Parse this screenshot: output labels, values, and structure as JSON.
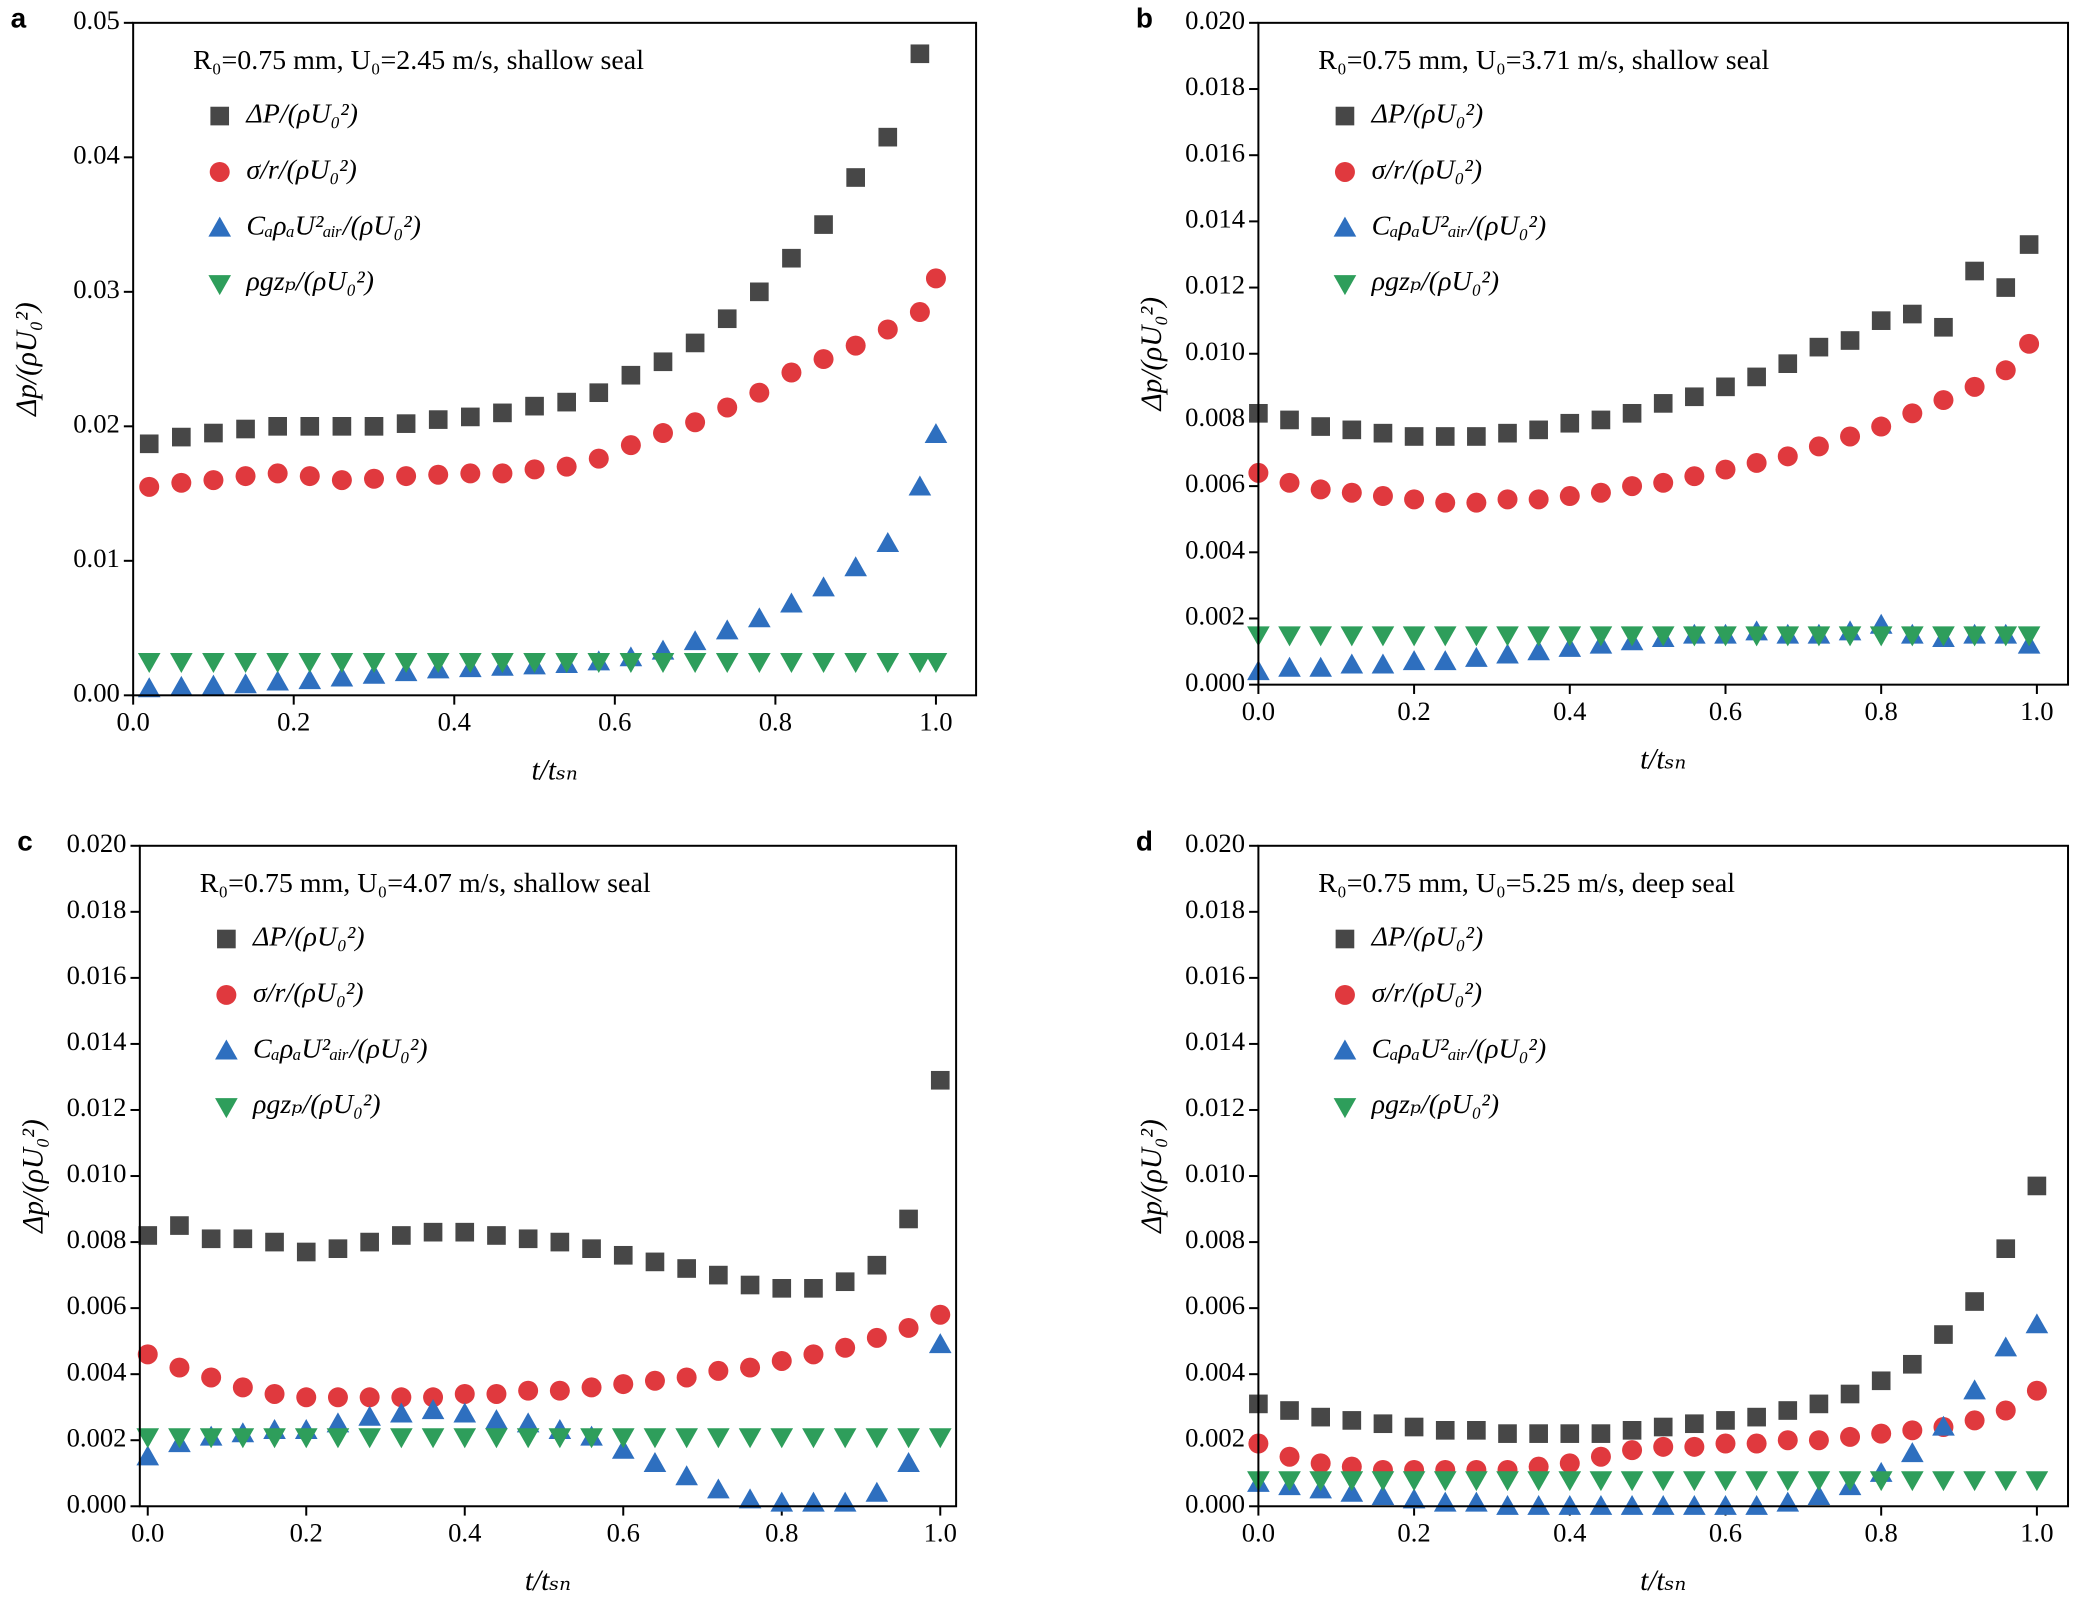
{
  "chart_data": [
    {
      "type": "scatter",
      "label": "a",
      "annotation": "R₀=0.75 mm, U₀=2.45 m/s, shallow seal",
      "xlabel": "t/tₛₙ",
      "ylabel": "Δp/(ρU₀²)",
      "xlim": [
        0,
        1.05
      ],
      "ylim": [
        0,
        0.05
      ],
      "xticks": [
        {
          "value": 0,
          "label": "0.0"
        },
        0.2,
        0.4,
        0.6,
        0.8,
        {
          "value": 1,
          "label": "1.0"
        }
      ],
      "yticks": [
        {
          "value": 0,
          "label": "0.00"
        },
        0.01,
        0.02,
        0.03,
        0.04,
        0.05
      ],
      "x": [
        0.02,
        0.06,
        0.1,
        0.14,
        0.18,
        0.22,
        0.26,
        0.3,
        0.34,
        0.38,
        0.42,
        0.46,
        0.5,
        0.54,
        0.58,
        0.62,
        0.66,
        0.7,
        0.74,
        0.78,
        0.82,
        0.86,
        0.9,
        0.94,
        0.98,
        1.0
      ],
      "series": [
        {
          "name": "ΔP/(ρU₀²)",
          "color": "#474747",
          "marker": "square",
          "values": [
            0.0187,
            0.0192,
            0.0195,
            0.0198,
            0.02,
            0.02,
            0.02,
            0.02,
            0.0202,
            0.0205,
            0.0207,
            0.021,
            0.0215,
            0.0218,
            0.0225,
            0.0238,
            0.0248,
            0.0262,
            0.028,
            0.03,
            0.0325,
            0.035,
            0.0385,
            0.0415,
            0.0477,
            null
          ]
        },
        {
          "name": "σ/r/(ρU₀²)",
          "color": "#e0393e",
          "marker": "circle",
          "values": [
            0.0155,
            0.0158,
            0.016,
            0.0163,
            0.0165,
            0.0163,
            0.016,
            0.0161,
            0.0163,
            0.0164,
            0.0165,
            0.0165,
            0.0168,
            0.017,
            0.0176,
            0.0186,
            0.0195,
            0.0203,
            0.0214,
            0.0225,
            0.024,
            0.025,
            0.026,
            0.0272,
            0.0285,
            0.031
          ]
        },
        {
          "name": "CₐρₐU²ₐᵢᵣ/(ρU₀²)",
          "color": "#2e6fbf",
          "marker": "triangle-up",
          "values": [
            0.0005,
            0.0006,
            0.0007,
            0.0008,
            0.001,
            0.0011,
            0.0013,
            0.0015,
            0.0017,
            0.0019,
            0.002,
            0.0021,
            0.0022,
            0.0023,
            0.0025,
            0.0028,
            0.0033,
            0.004,
            0.0048,
            0.0057,
            0.0068,
            0.008,
            0.0095,
            0.0113,
            0.0155,
            0.0194
          ]
        },
        {
          "name": "ρgzₚ/(ρU₀²)",
          "color": "#2e9e5b",
          "marker": "triangle-down",
          "values": [
            0.0025,
            0.0025,
            0.0025,
            0.0025,
            0.0025,
            0.0025,
            0.0025,
            0.0025,
            0.0025,
            0.0025,
            0.0025,
            0.0025,
            0.0025,
            0.0025,
            0.0025,
            0.0025,
            0.0025,
            0.0025,
            0.0025,
            0.0025,
            0.0025,
            0.0025,
            0.0025,
            0.0025,
            0.0025,
            0.0025
          ]
        }
      ]
    },
    {
      "type": "scatter",
      "label": "b",
      "annotation": "R₀=0.75 mm, U₀=3.71 m/s, shallow seal",
      "xlabel": "t/tₛₙ",
      "ylabel": "Δp/(ρU₀²)",
      "xlim": [
        0,
        1.04
      ],
      "ylim": [
        0,
        0.02
      ],
      "xticks": [
        {
          "value": 0,
          "label": "0.0"
        },
        0.2,
        0.4,
        0.6,
        0.8,
        {
          "value": 1,
          "label": "1.0"
        }
      ],
      "yticks": [
        {
          "value": 0,
          "label": "0.000"
        },
        0.002,
        0.004,
        0.006,
        0.008,
        {
          "value": 0.01,
          "label": "0.010"
        },
        0.012,
        0.014,
        0.016,
        0.018,
        {
          "value": 0.02,
          "label": "0.020"
        }
      ],
      "x": [
        0,
        0.04,
        0.08,
        0.12,
        0.16,
        0.2,
        0.24,
        0.28,
        0.32,
        0.36,
        0.4,
        0.44,
        0.48,
        0.52,
        0.56,
        0.6,
        0.64,
        0.68,
        0.72,
        0.76,
        0.8,
        0.84,
        0.88,
        0.92,
        0.96,
        0.99
      ],
      "series": [
        {
          "name": "ΔP/(ρU₀²)",
          "color": "#474747",
          "marker": "square",
          "values": [
            0.0082,
            0.008,
            0.0078,
            0.0077,
            0.0076,
            0.0075,
            0.0075,
            0.0075,
            0.0076,
            0.0077,
            0.0079,
            0.008,
            0.0082,
            0.0085,
            0.0087,
            0.009,
            0.0093,
            0.0097,
            0.0102,
            0.0104,
            0.011,
            0.0112,
            0.0108,
            0.0125,
            0.012,
            0.0133
          ]
        },
        {
          "name": "σ/r/(ρU₀²)",
          "color": "#e0393e",
          "marker": "circle",
          "values": [
            0.0064,
            0.0061,
            0.0059,
            0.0058,
            0.0057,
            0.0056,
            0.0055,
            0.0055,
            0.0056,
            0.0056,
            0.0057,
            0.0058,
            0.006,
            0.0061,
            0.0063,
            0.0065,
            0.0067,
            0.0069,
            0.0072,
            0.0075,
            0.0078,
            0.0082,
            0.0086,
            0.009,
            0.0095,
            0.0103
          ]
        },
        {
          "name": "CₐρₐU²ₐᵢᵣ/(ρU₀²)",
          "color": "#2e6fbf",
          "marker": "triangle-up",
          "values": [
            0.0004,
            0.0005,
            0.0005,
            0.0006,
            0.0006,
            0.0007,
            0.0007,
            0.0008,
            0.0009,
            0.001,
            0.0011,
            0.0012,
            0.0013,
            0.0014,
            0.0015,
            0.0015,
            0.0016,
            0.0015,
            0.0015,
            0.0016,
            0.0018,
            0.0015,
            0.0014,
            0.0015,
            0.0015,
            0.0012
          ]
        },
        {
          "name": "ρgzₚ/(ρU₀²)",
          "color": "#2e9e5b",
          "marker": "triangle-down",
          "values": [
            0.0015,
            0.0015,
            0.0015,
            0.0015,
            0.0015,
            0.0015,
            0.0015,
            0.0015,
            0.0015,
            0.0015,
            0.0015,
            0.0015,
            0.0015,
            0.0015,
            0.0015,
            0.0015,
            0.0015,
            0.0015,
            0.0015,
            0.0015,
            0.0015,
            0.0015,
            0.0015,
            0.0015,
            0.0015,
            0.0015
          ]
        }
      ]
    },
    {
      "type": "scatter",
      "label": "c",
      "annotation": "R₀=0.75 mm, U₀=4.07 m/s, shallow seal",
      "xlabel": "t/tₛₙ",
      "ylabel": "Δp/(ρU₀²)",
      "xlim": [
        -0.01,
        1.02
      ],
      "ylim": [
        0,
        0.02
      ],
      "xticks": [
        {
          "value": 0,
          "label": "0.0"
        },
        0.2,
        0.4,
        0.6,
        0.8,
        {
          "value": 1,
          "label": "1.0"
        }
      ],
      "yticks": [
        {
          "value": 0,
          "label": "0.000"
        },
        0.002,
        0.004,
        0.006,
        0.008,
        {
          "value": 0.01,
          "label": "0.010"
        },
        0.012,
        0.014,
        0.016,
        0.018,
        {
          "value": 0.02,
          "label": "0.020"
        }
      ],
      "x": [
        0,
        0.04,
        0.08,
        0.12,
        0.16,
        0.2,
        0.24,
        0.28,
        0.32,
        0.36,
        0.4,
        0.44,
        0.48,
        0.52,
        0.56,
        0.6,
        0.64,
        0.68,
        0.72,
        0.76,
        0.8,
        0.84,
        0.88,
        0.92,
        0.96,
        1.0
      ],
      "series": [
        {
          "name": "ΔP/(ρU₀²)",
          "color": "#474747",
          "marker": "square",
          "values": [
            0.0082,
            0.0085,
            0.0081,
            0.0081,
            0.008,
            0.0077,
            0.0078,
            0.008,
            0.0082,
            0.0083,
            0.0083,
            0.0082,
            0.0081,
            0.008,
            0.0078,
            0.0076,
            0.0074,
            0.0072,
            0.007,
            0.0067,
            0.0066,
            0.0066,
            0.0068,
            0.0073,
            0.0087,
            0.0129
          ]
        },
        {
          "name": "σ/r/(ρU₀²)",
          "color": "#e0393e",
          "marker": "circle",
          "values": [
            0.0046,
            0.0042,
            0.0039,
            0.0036,
            0.0034,
            0.0033,
            0.0033,
            0.0033,
            0.0033,
            0.0033,
            0.0034,
            0.0034,
            0.0035,
            0.0035,
            0.0036,
            0.0037,
            0.0038,
            0.0039,
            0.0041,
            0.0042,
            0.0044,
            0.0046,
            0.0048,
            0.0051,
            0.0054,
            0.0058
          ]
        },
        {
          "name": "CₐρₐU²ₐᵢᵣ/(ρU₀²)",
          "color": "#2e6fbf",
          "marker": "triangle-up",
          "values": [
            0.0015,
            0.0019,
            0.0021,
            0.0022,
            0.0023,
            0.0023,
            0.0025,
            0.0027,
            0.0028,
            0.0029,
            0.0028,
            0.0026,
            0.0025,
            0.0023,
            0.0021,
            0.0017,
            0.0013,
            0.0009,
            0.0005,
            0.0002,
            0.0001,
            0.0001,
            0.0001,
            0.0004,
            0.0013,
            0.0049
          ]
        },
        {
          "name": "ρgzₚ/(ρU₀²)",
          "color": "#2e9e5b",
          "marker": "triangle-down",
          "values": [
            0.0021,
            0.0021,
            0.0021,
            0.0021,
            0.0021,
            0.0021,
            0.0021,
            0.0021,
            0.0021,
            0.0021,
            0.0021,
            0.0021,
            0.0021,
            0.0021,
            0.0021,
            0.0021,
            0.0021,
            0.0021,
            0.0021,
            0.0021,
            0.0021,
            0.0021,
            0.0021,
            0.0021,
            0.0021,
            0.0021
          ]
        }
      ]
    },
    {
      "type": "scatter",
      "label": "d",
      "annotation": "R₀=0.75 mm, U₀=5.25 m/s, deep seal",
      "xlabel": "t/tₛₙ",
      "ylabel": "Δp/(ρU₀²)",
      "xlim": [
        0,
        1.04
      ],
      "ylim": [
        0,
        0.02
      ],
      "xticks": [
        {
          "value": 0,
          "label": "0.0"
        },
        0.2,
        0.4,
        0.6,
        0.8,
        {
          "value": 1,
          "label": "1.0"
        }
      ],
      "yticks": [
        {
          "value": 0,
          "label": "0.000"
        },
        0.002,
        0.004,
        0.006,
        0.008,
        {
          "value": 0.01,
          "label": "0.010"
        },
        0.012,
        0.014,
        0.016,
        0.018,
        {
          "value": 0.02,
          "label": "0.020"
        }
      ],
      "x": [
        0,
        0.04,
        0.08,
        0.12,
        0.16,
        0.2,
        0.24,
        0.28,
        0.32,
        0.36,
        0.4,
        0.44,
        0.48,
        0.52,
        0.56,
        0.6,
        0.64,
        0.68,
        0.72,
        0.76,
        0.8,
        0.84,
        0.88,
        0.92,
        0.96,
        1.0
      ],
      "series": [
        {
          "name": "ΔP/(ρU₀²)",
          "color": "#474747",
          "marker": "square",
          "values": [
            0.0031,
            0.0029,
            0.0027,
            0.0026,
            0.0025,
            0.0024,
            0.0023,
            0.0023,
            0.0022,
            0.0022,
            0.0022,
            0.0022,
            0.0023,
            0.0024,
            0.0025,
            0.0026,
            0.0027,
            0.0029,
            0.0031,
            0.0034,
            0.0038,
            0.0043,
            0.0052,
            0.0062,
            0.0078,
            0.0097
          ]
        },
        {
          "name": "σ/r/(ρU₀²)",
          "color": "#e0393e",
          "marker": "circle",
          "values": [
            0.0019,
            0.0015,
            0.0013,
            0.0012,
            0.0011,
            0.0011,
            0.0011,
            0.0011,
            0.0011,
            0.0012,
            0.0013,
            0.0015,
            0.0017,
            0.0018,
            0.0018,
            0.0019,
            0.0019,
            0.002,
            0.002,
            0.0021,
            0.0022,
            0.0023,
            0.0024,
            0.0026,
            0.0029,
            0.0035
          ]
        },
        {
          "name": "CₐρₐU²ₐᵢᵣ/(ρU₀²)",
          "color": "#2e6fbf",
          "marker": "triangle-up",
          "values": [
            0.0007,
            0.0006,
            0.0005,
            0.0004,
            0.0003,
            0.0002,
            0.0001,
            0.0001,
            0,
            0,
            0,
            0,
            0,
            0,
            0,
            0,
            0,
            0.0001,
            0.0003,
            0.0006,
            0.001,
            0.0016,
            0.0024,
            0.0035,
            0.0048,
            0.0055
          ]
        },
        {
          "name": "ρgzₚ/(ρU₀²)",
          "color": "#2e9e5b",
          "marker": "triangle-down",
          "values": [
            0.0008,
            0.0008,
            0.0008,
            0.0008,
            0.0008,
            0.0008,
            0.0008,
            0.0008,
            0.0008,
            0.0008,
            0.0008,
            0.0008,
            0.0008,
            0.0008,
            0.0008,
            0.0008,
            0.0008,
            0.0008,
            0.0008,
            0.0008,
            0.0008,
            0.0008,
            0.0008,
            0.0008,
            0.0008,
            0.0008
          ]
        }
      ]
    }
  ]
}
